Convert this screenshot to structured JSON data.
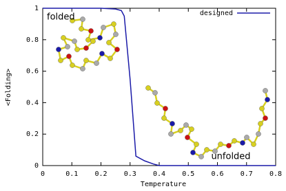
{
  "chart_data": {
    "type": "line",
    "x_label": "Temperature",
    "y_label": "<Folding>",
    "series": [
      {
        "name": "designed",
        "color": "#1a1aa8",
        "x": [
          0,
          0.1,
          0.2,
          0.25,
          0.27,
          0.28,
          0.3,
          0.32,
          0.35,
          0.38,
          0.4,
          0.5,
          0.6,
          0.7,
          0.8
        ],
        "values": [
          1,
          1,
          1,
          0.995,
          0.985,
          0.95,
          0.55,
          0.06,
          0.03,
          0.01,
          0,
          0,
          0,
          0,
          0
        ]
      }
    ],
    "xlim": [
      0,
      0.8
    ],
    "xticks": [
      0,
      0.1,
      0.2,
      0.3,
      0.4,
      0.5,
      0.6,
      0.7,
      0.8
    ],
    "ylim": [
      0,
      1
    ],
    "yticks": [
      0,
      0.2,
      0.4,
      0.6,
      0.8,
      1
    ],
    "legend": "top-right",
    "grid": false,
    "annotations": [
      "folded",
      "unfolded"
    ]
  }
}
